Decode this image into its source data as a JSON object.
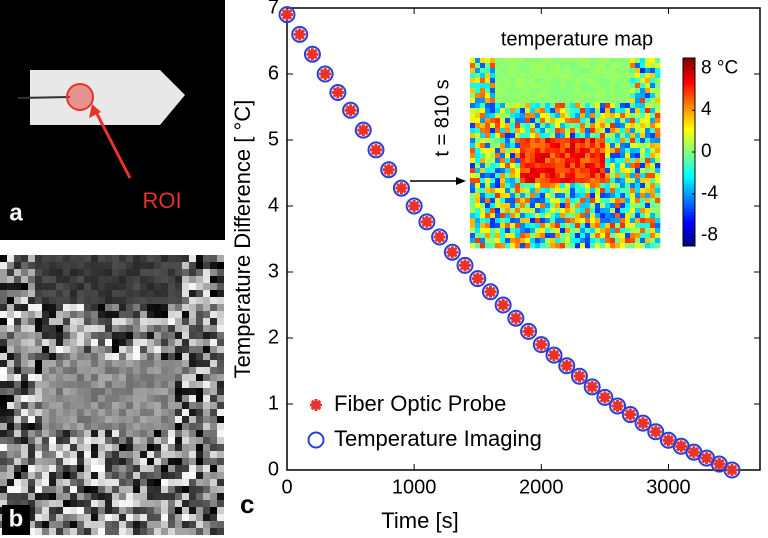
{
  "panels": {
    "a": {
      "label": "a",
      "annotation": "ROI"
    },
    "b": {
      "label": "b"
    }
  },
  "chart_data": {
    "type": "scatter",
    "panel_label": "c",
    "x_label": "Time [s]",
    "y_label": "Temperature Difference [ °C]",
    "x": [
      0,
      100,
      200,
      300,
      400,
      500,
      600,
      700,
      800,
      900,
      1000,
      1100,
      1200,
      1300,
      1400,
      1500,
      1600,
      1700,
      1800,
      1900,
      2000,
      2100,
      2200,
      2300,
      2400,
      2500,
      2600,
      2700,
      2800,
      2900,
      3000,
      3100,
      3200,
      3300,
      3400,
      3500
    ],
    "series": [
      {
        "name": "Fiber Optic Probe",
        "color": "#e8322a",
        "marker": "star",
        "values": [
          6.9,
          6.6,
          6.3,
          6.0,
          5.72,
          5.45,
          5.15,
          4.85,
          4.55,
          4.27,
          4.0,
          3.76,
          3.53,
          3.3,
          3.1,
          2.9,
          2.7,
          2.5,
          2.3,
          2.1,
          1.9,
          1.74,
          1.58,
          1.42,
          1.26,
          1.1,
          0.97,
          0.84,
          0.71,
          0.58,
          0.45,
          0.36,
          0.27,
          0.18,
          0.09,
          0.0
        ]
      },
      {
        "name": "Temperature Imaging",
        "color": "#2a3fd6",
        "marker": "circle",
        "values": [
          6.9,
          6.6,
          6.3,
          6.0,
          5.72,
          5.45,
          5.15,
          4.85,
          4.55,
          4.27,
          4.0,
          3.76,
          3.53,
          3.3,
          3.1,
          2.9,
          2.7,
          2.5,
          2.3,
          2.1,
          1.9,
          1.74,
          1.58,
          1.42,
          1.26,
          1.1,
          0.97,
          0.84,
          0.71,
          0.58,
          0.45,
          0.36,
          0.27,
          0.18,
          0.09,
          0.0
        ]
      }
    ],
    "xlim": [
      0,
      3720
    ],
    "xticks": [
      0,
      1000,
      2000,
      3000
    ],
    "ylim": [
      0,
      7
    ],
    "yticks": [
      0,
      1,
      2,
      3,
      4,
      5,
      6,
      7
    ],
    "legend": "lower left",
    "inset": {
      "title": "temperature map",
      "annotation": "t = 810 s",
      "clim": [
        -9,
        9
      ],
      "colorbar_ticks": [
        {
          "value": 8,
          "label": "8 °C"
        },
        4,
        0,
        -4,
        -8
      ]
    }
  }
}
